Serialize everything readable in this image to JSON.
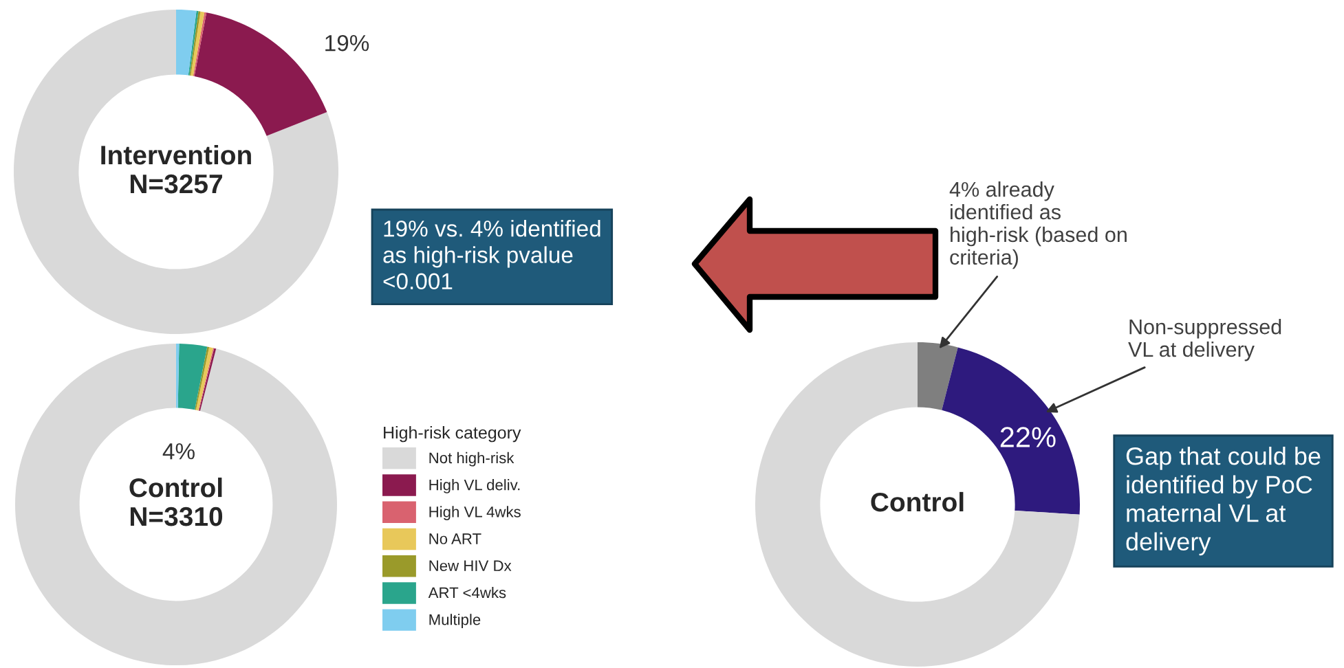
{
  "chart_data": [
    {
      "type": "donut",
      "title": "Intervention\nN=3257",
      "categories": [
        null,
        null,
        null,
        null,
        null,
        null,
        null
      ],
      "values": [
        81,
        16,
        0.2,
        0.4,
        0.2,
        0.2,
        2
      ],
      "colors": [
        "#d9d9d9",
        "#8b1a4f",
        "#d9626f",
        "#e8c85a",
        "#9a9a2a",
        "#2aa58c",
        "#7fcdef"
      ],
      "annotations": [
        "19%"
      ]
    },
    {
      "type": "donut",
      "title": "Control\nN=3310",
      "legend_title": "High-risk category",
      "legend": "right",
      "categories": [
        "Not high-risk",
        "High VL deliv.",
        "High VL 4wks",
        "No ART",
        "New HIV Dx",
        "ART <4wks",
        "Multiple"
      ],
      "values": [
        96,
        0.2,
        0.1,
        0.4,
        0.2,
        2.8,
        0.3
      ],
      "colors": [
        "#d9d9d9",
        "#8b1a4f",
        "#d9626f",
        "#e8c85a",
        "#9a9a2a",
        "#2aa58c",
        "#7fcdef"
      ],
      "annotations": [
        "4%"
      ]
    },
    {
      "type": "donut",
      "title": "Control",
      "categories": [
        "4% already identified as high-risk (based on criteria)",
        "Non-suppressed VL at delivery",
        null
      ],
      "values": [
        4,
        22,
        74
      ],
      "colors": [
        "#7f7f7f",
        "#2e1a7e",
        "#d9d9d9"
      ],
      "value_labels": [
        null,
        "22%",
        null
      ],
      "annotations": [
        "19% vs. 4% identified as high-risk pvalue <0.001",
        "Gap that could be identified by PoC maternal VL at delivery"
      ]
    }
  ]
}
